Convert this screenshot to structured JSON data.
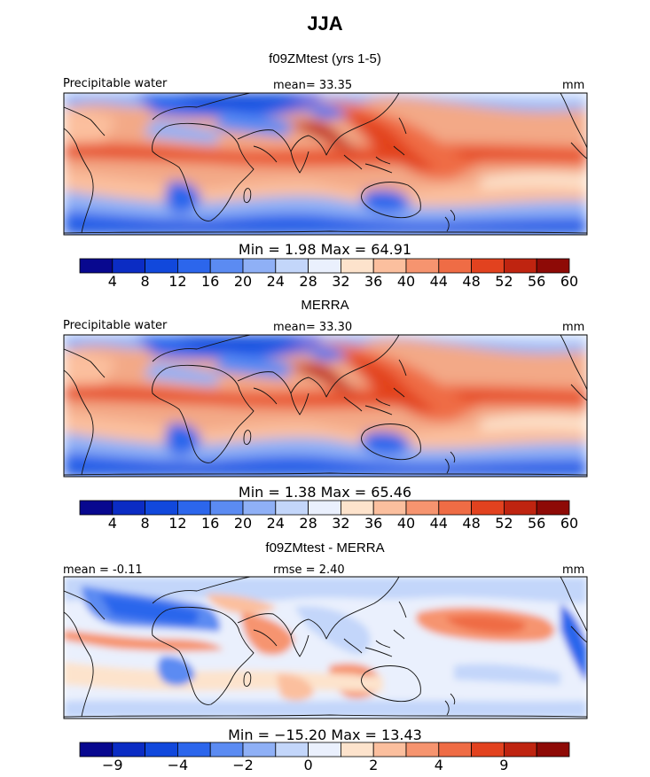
{
  "page": {
    "season": "JJA"
  },
  "palette": {
    "colors": [
      "#08088f",
      "#0b2cc4",
      "#1148dc",
      "#2c66ec",
      "#5b8bf2",
      "#8fb0f6",
      "#c3d6fa",
      "#eaf0fd",
      "#fde3cc",
      "#fbbf9e",
      "#f6946f",
      "#ef6c45",
      "#e2421f",
      "#bf2410",
      "#8e0a06"
    ],
    "diff_colors": [
      "#08088f",
      "#0b2cc4",
      "#1148dc",
      "#2c66ec",
      "#5b8bf2",
      "#8fb0f6",
      "#c3d6fa",
      "#eaf0fd",
      "#fde3cc",
      "#fbbf9e",
      "#f6946f",
      "#ef6c45",
      "#e2421f",
      "#bf2410",
      "#8e0a06"
    ]
  },
  "panels": [
    {
      "id": "model",
      "title": "f09ZMtest (yrs 1-5)",
      "field_label": "Precipitable water",
      "mean_text": "mean=   33.35",
      "units": "mm",
      "minmax_text": "Min =    1.98 Max =   64.91",
      "colorbar_ticks": [
        "4",
        "8",
        "12",
        "16",
        "20",
        "24",
        "28",
        "32",
        "36",
        "40",
        "44",
        "48",
        "52",
        "56",
        "60"
      ]
    },
    {
      "id": "obs",
      "title": "MERRA",
      "field_label": "Precipitable water",
      "mean_text": "mean=   33.30",
      "units": "mm",
      "minmax_text": "Min =    1.38 Max =   65.46",
      "colorbar_ticks": [
        "4",
        "8",
        "12",
        "16",
        "20",
        "24",
        "28",
        "32",
        "36",
        "40",
        "44",
        "48",
        "52",
        "56",
        "60"
      ]
    },
    {
      "id": "diff",
      "title": "f09ZMtest - MERRA",
      "mean_text": "mean =   -0.11",
      "rmse_text": "rmse =    2.40",
      "units": "mm",
      "minmax_text": "Min = −15.20 Max =  13.43",
      "colorbar_ticks": [
        "−9",
        "−4",
        "−2",
        "0",
        "2",
        "4",
        "9"
      ]
    }
  ],
  "chart_data": [
    {
      "type": "heatmap",
      "title": "f09ZMtest (yrs 1-5)",
      "variable": "Precipitable water",
      "units": "mm",
      "mean": 33.35,
      "min": 1.98,
      "max": 64.91,
      "levels": [
        4,
        8,
        12,
        16,
        20,
        24,
        28,
        32,
        36,
        40,
        44,
        48,
        52,
        56,
        60
      ],
      "lon_range": [
        -180,
        180
      ],
      "lat_range": [
        -60,
        60
      ]
    },
    {
      "type": "heatmap",
      "title": "MERRA",
      "variable": "Precipitable water",
      "units": "mm",
      "mean": 33.3,
      "min": 1.38,
      "max": 65.46,
      "levels": [
        4,
        8,
        12,
        16,
        20,
        24,
        28,
        32,
        36,
        40,
        44,
        48,
        52,
        56,
        60
      ],
      "lon_range": [
        -180,
        180
      ],
      "lat_range": [
        -60,
        60
      ]
    },
    {
      "type": "heatmap",
      "title": "f09ZMtest - MERRA",
      "units": "mm",
      "mean": -0.11,
      "rmse": 2.4,
      "min": -15.2,
      "max": 13.43,
      "levels": [
        -9,
        -4,
        -2,
        0,
        2,
        4,
        9
      ],
      "lon_range": [
        -180,
        180
      ],
      "lat_range": [
        -60,
        60
      ]
    }
  ]
}
